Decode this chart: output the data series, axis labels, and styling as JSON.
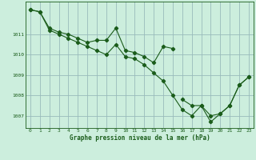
{
  "title": "Graphe pression niveau de la mer (hPa)",
  "background_color": "#cceedd",
  "grid_color": "#99bbbb",
  "line_color": "#1a5c1a",
  "x_values": [
    0,
    1,
    2,
    3,
    4,
    5,
    6,
    7,
    8,
    9,
    10,
    11,
    12,
    13,
    14,
    15,
    16,
    17,
    18,
    19,
    20,
    21,
    22,
    23
  ],
  "line1": [
    1012.2,
    1012.1,
    1011.3,
    1011.1,
    1011.0,
    1010.8,
    1010.6,
    1010.7,
    1010.7,
    1011.3,
    1010.2,
    1010.1,
    1009.9,
    1009.6,
    1010.4,
    1010.3,
    null,
    null,
    null,
    null,
    null,
    null,
    null,
    null
  ],
  "line2": [
    1012.2,
    1012.1,
    1011.2,
    1011.0,
    1010.8,
    1010.6,
    1010.4,
    1010.2,
    1010.0,
    1010.5,
    1009.9,
    1009.8,
    1009.5,
    1009.1,
    1008.7,
    1008.0,
    1007.3,
    1007.0,
    1007.5,
    1006.7,
    1007.1,
    1007.5,
    1008.5,
    1008.9
  ],
  "line3": [
    null,
    null,
    null,
    null,
    null,
    null,
    null,
    null,
    null,
    null,
    null,
    null,
    null,
    null,
    null,
    null,
    1007.8,
    1007.5,
    1007.5,
    1007.0,
    1007.1,
    1007.5,
    1008.5,
    1008.9
  ],
  "ylim": [
    1006.4,
    1012.6
  ],
  "yticks": [
    1007,
    1008,
    1009,
    1010,
    1011
  ],
  "xlim": [
    -0.5,
    23.5
  ],
  "xticks": [
    0,
    1,
    2,
    3,
    4,
    5,
    6,
    7,
    8,
    9,
    10,
    11,
    12,
    13,
    14,
    15,
    16,
    17,
    18,
    19,
    20,
    21,
    22,
    23
  ],
  "figsize": [
    3.2,
    2.0
  ],
  "dpi": 100
}
